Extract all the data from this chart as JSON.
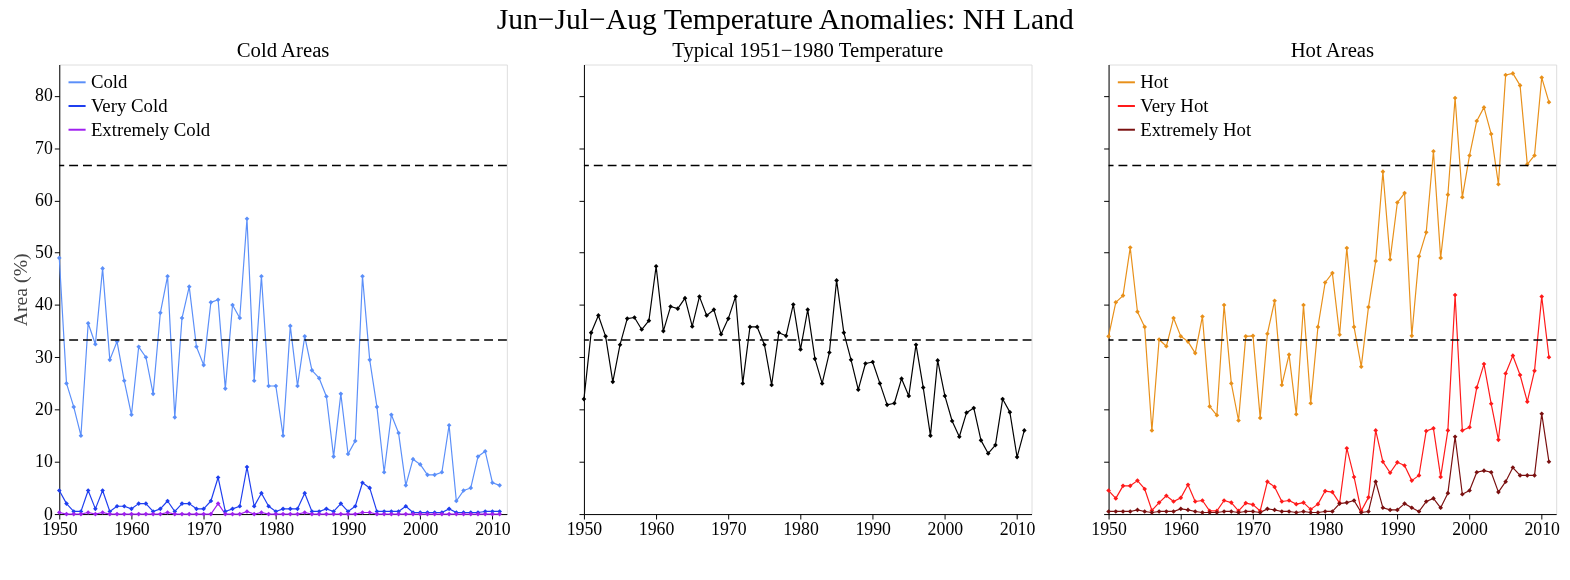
{
  "chart_data": [
    {
      "type": "line",
      "subtitle": "Cold Areas",
      "ylabel": "Area (%)",
      "x": [
        1950,
        1951,
        1952,
        1953,
        1954,
        1955,
        1956,
        1957,
        1958,
        1959,
        1960,
        1961,
        1962,
        1963,
        1964,
        1965,
        1966,
        1967,
        1968,
        1969,
        1970,
        1971,
        1972,
        1973,
        1974,
        1975,
        1976,
        1977,
        1978,
        1979,
        1980,
        1981,
        1982,
        1983,
        1984,
        1985,
        1986,
        1987,
        1988,
        1989,
        1990,
        1991,
        1992,
        1993,
        1994,
        1995,
        1996,
        1997,
        1998,
        1999,
        2000,
        2001,
        2002,
        2003,
        2004,
        2005,
        2006,
        2007,
        2008,
        2009,
        2010,
        2011
      ],
      "xlim": [
        1950,
        2012
      ],
      "xticks": [
        1950,
        1960,
        1970,
        1980,
        1990,
        2000,
        2010
      ],
      "ylim": [
        0,
        86
      ],
      "yticks": [
        0,
        10,
        20,
        30,
        40,
        50,
        60,
        70,
        80
      ],
      "grid": false,
      "legend": "top left",
      "marker": "diamond",
      "series": [
        {
          "name": "Cold",
          "color": "#5b8ff9",
          "values": [
            49,
            25,
            20.5,
            15,
            36.5,
            32.5,
            47,
            29.5,
            33,
            25.5,
            19,
            32,
            30,
            23,
            38.5,
            45.5,
            18.5,
            37.5,
            43.5,
            32,
            28.5,
            40.5,
            41,
            24,
            40,
            37.5,
            56.5,
            25.5,
            45.5,
            24.5,
            24.5,
            15,
            36,
            24.5,
            34,
            27.5,
            26,
            22.5,
            11,
            23,
            11.5,
            14,
            45.5,
            29.5,
            20.5,
            8,
            19,
            15.5,
            5.5,
            10.5,
            9.5,
            7.5,
            7.5,
            8,
            17,
            2.5,
            4.5,
            5,
            11,
            12,
            6,
            5.5
          ]
        },
        {
          "name": "Very Cold",
          "color": "#1f3fef",
          "values": [
            4.5,
            2,
            0.5,
            0.5,
            4.5,
            1,
            4.5,
            0.5,
            1.5,
            1.5,
            1,
            2,
            2,
            0.5,
            1,
            2.5,
            0.5,
            2,
            2,
            1,
            1,
            2.5,
            7,
            0.5,
            1,
            1.5,
            9,
            1.5,
            4,
            1.5,
            0.5,
            1,
            1,
            1,
            4,
            0.5,
            0.5,
            1,
            0.5,
            2,
            0.5,
            1.5,
            6,
            5,
            0.5,
            0.5,
            0.5,
            0.5,
            1.5,
            0.3,
            0.3,
            0.3,
            0.3,
            0.3,
            1,
            0.3,
            0.3,
            0.3,
            0.3,
            0.5,
            0.5,
            0.5
          ]
        },
        {
          "name": "Extremely Cold",
          "color": "#a020f0",
          "values": [
            0.3,
            0,
            0,
            0,
            0.3,
            0,
            0.3,
            0,
            0,
            0,
            0,
            0,
            0,
            0,
            0,
            0.3,
            0,
            0,
            0,
            0,
            0,
            0,
            2,
            0,
            0,
            0,
            0.5,
            0,
            0.3,
            0,
            0,
            0,
            0,
            0,
            0.3,
            0,
            0,
            0,
            0,
            0,
            0,
            0,
            0.3,
            0.3,
            0,
            0,
            0,
            0,
            0,
            0,
            0,
            0,
            0,
            0,
            0,
            0,
            0,
            0,
            0,
            0,
            0,
            0
          ]
        }
      ],
      "ref_lines": [
        {
          "axis": "y",
          "value": 33.3,
          "line_style": "dashed"
        },
        {
          "axis": "y",
          "value": 66.7,
          "line_style": "dashed"
        }
      ]
    },
    {
      "type": "line",
      "title": "Jun−Jul−Aug Temperature Anomalies: NH Land",
      "subtitle": "Typical 1951−1980 Temperature",
      "x": [
        1950,
        1951,
        1952,
        1953,
        1954,
        1955,
        1956,
        1957,
        1958,
        1959,
        1960,
        1961,
        1962,
        1963,
        1964,
        1965,
        1966,
        1967,
        1968,
        1969,
        1970,
        1971,
        1972,
        1973,
        1974,
        1975,
        1976,
        1977,
        1978,
        1979,
        1980,
        1981,
        1982,
        1983,
        1984,
        1985,
        1986,
        1987,
        1988,
        1989,
        1990,
        1991,
        1992,
        1993,
        1994,
        1995,
        1996,
        1997,
        1998,
        1999,
        2000,
        2001,
        2002,
        2003,
        2004,
        2005,
        2006,
        2007,
        2008,
        2009,
        2010,
        2011
      ],
      "xlim": [
        1950,
        2012
      ],
      "xticks": [
        1950,
        1960,
        1970,
        1980,
        1990,
        2000,
        2010
      ],
      "ylim": [
        0,
        86
      ],
      "yticks": [
        0,
        10,
        20,
        30,
        40,
        50,
        60,
        70,
        80
      ],
      "tick_labels": "x",
      "grid": false,
      "marker": "diamond",
      "series": [
        {
          "color": "#000000",
          "values": [
            22,
            34.7,
            38,
            34,
            25.3,
            32.4,
            37.4,
            37.6,
            35.3,
            37,
            47.4,
            35,
            39.7,
            39.3,
            41.3,
            35.9,
            41.6,
            38,
            39.1,
            34.4,
            37.4,
            41.6,
            25,
            35.8,
            35.8,
            32.4,
            24.7,
            34.7,
            34.1,
            40.1,
            31.5,
            39.1,
            29.7,
            25,
            30.9,
            44.7,
            34.7,
            29.5,
            23.8,
            28.8,
            29.1,
            25,
            20.9,
            21.2,
            25.9,
            22.6,
            32.4,
            24.2,
            15,
            29.4,
            22.6,
            17.8,
            14.8,
            19.4,
            20.3,
            14.1,
            11.6,
            13.2,
            22,
            19.5,
            10.9,
            16
          ]
        }
      ],
      "ref_lines": [
        {
          "axis": "y",
          "value": 33.3,
          "line_style": "dashed"
        },
        {
          "axis": "y",
          "value": 66.7,
          "line_style": "dashed"
        }
      ]
    },
    {
      "type": "line",
      "subtitle": "Hot Areas",
      "x": [
        1950,
        1951,
        1952,
        1953,
        1954,
        1955,
        1956,
        1957,
        1958,
        1959,
        1960,
        1961,
        1962,
        1963,
        1964,
        1965,
        1966,
        1967,
        1968,
        1969,
        1970,
        1971,
        1972,
        1973,
        1974,
        1975,
        1976,
        1977,
        1978,
        1979,
        1980,
        1981,
        1982,
        1983,
        1984,
        1985,
        1986,
        1987,
        1988,
        1989,
        1990,
        1991,
        1992,
        1993,
        1994,
        1995,
        1996,
        1997,
        1998,
        1999,
        2000,
        2001,
        2002,
        2003,
        2004,
        2005,
        2006,
        2007,
        2008,
        2009,
        2010,
        2011
      ],
      "xlim": [
        1950,
        2012
      ],
      "xticks": [
        1950,
        1960,
        1970,
        1980,
        1990,
        2000,
        2010
      ],
      "ylim": [
        0,
        86
      ],
      "yticks": [
        0,
        10,
        20,
        30,
        40,
        50,
        60,
        70,
        80
      ],
      "tick_labels": "x",
      "grid": false,
      "legend": "top left",
      "marker": "diamond",
      "series": [
        {
          "name": "Hot",
          "color": "#e8901a",
          "values": [
            34,
            40.5,
            41.8,
            51,
            38.7,
            35.8,
            16,
            33.4,
            32.1,
            37.5,
            34,
            33,
            30.8,
            37.8,
            20.6,
            18.9,
            40,
            25,
            17.9,
            34,
            34.1,
            18.4,
            34.5,
            40.8,
            24.7,
            30.5,
            19.1,
            40,
            21.2,
            35.8,
            44.3,
            46.1,
            34.3,
            50.9,
            35.8,
            28.2,
            39.6,
            48.4,
            65.5,
            48.7,
            59.6,
            61.4,
            34.1,
            49.3,
            53.9,
            69.4,
            49,
            61.1,
            79.6,
            60.6,
            68.6,
            75.2,
            77.8,
            72.7,
            63.1,
            84,
            84.3,
            82,
            66.9,
            68.6,
            83.5,
            78.8
          ]
        },
        {
          "name": "Very Hot",
          "color": "#ff1a1a",
          "values": [
            4.5,
            3,
            5.4,
            5.4,
            6.4,
            4.8,
            0.7,
            2.2,
            3.5,
            2.4,
            3.1,
            5.6,
            2.4,
            2.6,
            0.6,
            0.6,
            2.6,
            2.2,
            0.6,
            2.1,
            1.8,
            0.6,
            6.2,
            5.2,
            2.4,
            2.6,
            1.9,
            2.2,
            0.9,
            1.9,
            4.4,
            4.2,
            2.1,
            12.6,
            7.1,
            0.6,
            3.2,
            16,
            10,
            7.9,
            9.9,
            9.3,
            6.4,
            7.4,
            15.9,
            16.4,
            7.1,
            16,
            41.9,
            16,
            16.6,
            24.2,
            28.7,
            21.1,
            14.2,
            26.9,
            30.3,
            26.6,
            21.5,
            27.4,
            41.6,
            30
          ]
        },
        {
          "name": "Extremely Hot",
          "color": "#7a1010",
          "values": [
            0.5,
            0.5,
            0.5,
            0.5,
            0.8,
            0.5,
            0.3,
            0.5,
            0.5,
            0.5,
            1,
            0.8,
            0.5,
            0.3,
            0.3,
            0.3,
            0.5,
            0.5,
            0.3,
            0.5,
            0.5,
            0.3,
            1,
            0.8,
            0.5,
            0.5,
            0.3,
            0.5,
            0.3,
            0.3,
            0.5,
            0.5,
            2,
            2.2,
            2.6,
            0.3,
            0.5,
            6.2,
            1.2,
            0.8,
            0.8,
            2,
            1.2,
            0.5,
            2.4,
            3,
            1.2,
            4,
            14.8,
            3.8,
            4.5,
            8,
            8.3,
            8,
            4.2,
            6.2,
            8.9,
            7.4,
            7.4,
            7.4,
            19.2,
            10
          ]
        }
      ],
      "ref_lines": [
        {
          "axis": "y",
          "value": 33.3,
          "line_style": "dashed"
        },
        {
          "axis": "y",
          "value": 66.7,
          "line_style": "dashed"
        }
      ]
    }
  ]
}
